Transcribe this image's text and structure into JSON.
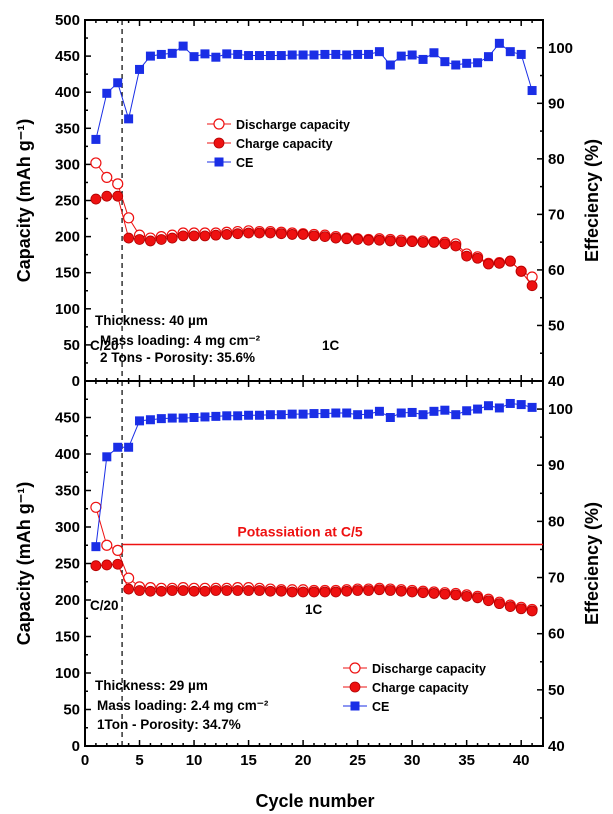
{
  "chart_data": [
    {
      "type": "scatter",
      "title": "",
      "xlabel": "Cycle number",
      "ylabel": "Capacity (mAh g⁻¹)",
      "ylabel_right": "Effeciency (%)",
      "xlim": [
        0,
        42
      ],
      "ylim": [
        0,
        500
      ],
      "ylim_right": [
        40,
        105
      ],
      "x_ticks": [
        "0",
        "5",
        "10",
        "15",
        "20",
        "25",
        "30",
        "35",
        "40"
      ],
      "y_ticks": [
        "0",
        "50",
        "100",
        "150",
        "200",
        "250",
        "300",
        "350",
        "400",
        "450",
        "500"
      ],
      "y_ticks_right": [
        "40",
        "50",
        "60",
        "70",
        "80",
        "90",
        "100"
      ],
      "legend_position": "top-center",
      "rate_divider_x": 3.4,
      "annotations": {
        "rate_left": "C/20",
        "rate_right": "1C",
        "thickness": "Thickness: 40 µm",
        "mass_loading": "Mass loading: 4 mg cm⁻²",
        "porosity": "2 Tons - Porosity: 35.6%"
      },
      "colors": {
        "red": "#ee1111",
        "blue": "#1a2ee6"
      },
      "series": [
        {
          "name": "Discharge capacity",
          "axis": "left",
          "marker": "open-circle",
          "x": [
            1,
            2,
            3,
            4,
            5,
            6,
            7,
            8,
            9,
            10,
            11,
            12,
            13,
            14,
            15,
            16,
            17,
            18,
            19,
            20,
            21,
            22,
            23,
            24,
            25,
            26,
            27,
            28,
            29,
            30,
            31,
            32,
            33,
            34,
            35,
            36,
            37,
            38,
            39,
            40,
            41
          ],
          "values": [
            302,
            282,
            273,
            226,
            202,
            198,
            200,
            202,
            205,
            205,
            205,
            205,
            206,
            207,
            208,
            207,
            207,
            206,
            205,
            204,
            203,
            202,
            200,
            198,
            197,
            196,
            197,
            196,
            195,
            194,
            194,
            193,
            192,
            190,
            176,
            172,
            163,
            164,
            166,
            152,
            144
          ]
        },
        {
          "name": "Charge capacity",
          "axis": "left",
          "marker": "filled-circle",
          "x": [
            1,
            2,
            3,
            4,
            5,
            6,
            7,
            8,
            9,
            10,
            11,
            12,
            13,
            14,
            15,
            16,
            17,
            18,
            19,
            20,
            21,
            22,
            23,
            24,
            25,
            26,
            27,
            28,
            29,
            30,
            31,
            32,
            33,
            34,
            35,
            36,
            37,
            38,
            39,
            40,
            41
          ],
          "values": [
            252,
            256,
            256,
            198,
            196,
            194,
            196,
            198,
            201,
            201,
            201,
            202,
            203,
            204,
            205,
            205,
            205,
            204,
            203,
            203,
            201,
            200,
            198,
            197,
            196,
            195,
            195,
            194,
            193,
            193,
            192,
            192,
            190,
            187,
            173,
            170,
            162,
            163,
            166,
            152,
            132
          ]
        },
        {
          "name": "CE",
          "axis": "right",
          "marker": "filled-square",
          "x": [
            1,
            2,
            3,
            4,
            5,
            6,
            7,
            8,
            9,
            10,
            11,
            12,
            13,
            14,
            15,
            16,
            17,
            18,
            19,
            20,
            21,
            22,
            23,
            24,
            25,
            26,
            27,
            28,
            29,
            30,
            31,
            32,
            33,
            34,
            35,
            36,
            37,
            38,
            39,
            40,
            41
          ],
          "values": [
            83.5,
            91.8,
            93.7,
            87.2,
            96.1,
            98.5,
            98.8,
            99.0,
            100.3,
            98.4,
            98.9,
            98.3,
            98.9,
            98.8,
            98.6,
            98.6,
            98.6,
            98.6,
            98.7,
            98.7,
            98.7,
            98.8,
            98.8,
            98.7,
            98.8,
            98.8,
            99.3,
            96.9,
            98.5,
            98.7,
            97.9,
            99.1,
            97.5,
            96.9,
            97.2,
            97.3,
            98.4,
            100.8,
            99.3,
            98.8,
            92.3
          ]
        }
      ]
    },
    {
      "type": "scatter",
      "title": "",
      "xlabel": "Cycle number",
      "ylabel": "Capacity (mAh g⁻¹)",
      "ylabel_right": "Effeciency (%)",
      "xlim": [
        0,
        42
      ],
      "ylim": [
        0,
        500
      ],
      "ylim_right": [
        40,
        105
      ],
      "x_ticks": [
        "0",
        "5",
        "10",
        "15",
        "20",
        "25",
        "30",
        "35",
        "40"
      ],
      "y_ticks": [
        "0",
        "50",
        "100",
        "150",
        "200",
        "250",
        "300",
        "350",
        "400",
        "450"
      ],
      "y_ticks_right": [
        "40",
        "50",
        "60",
        "70",
        "80",
        "90",
        "100"
      ],
      "legend_position": "bottom-right",
      "rate_divider_x": 3.4,
      "potassiation_line_y": 276,
      "annotations": {
        "rate_left": "C/20",
        "rate_right": "1C",
        "potassiation": "Potassiation at C/5",
        "thickness": "Thickness: 29 µm",
        "mass_loading": "Mass loading: 2.4 mg cm⁻²",
        "porosity": "1Ton - Porosity: 34.7%"
      },
      "colors": {
        "red": "#ee1111",
        "blue": "#1a2ee6"
      },
      "series": [
        {
          "name": "Discharge capacity",
          "axis": "left",
          "marker": "open-circle",
          "x": [
            1,
            2,
            3,
            4,
            5,
            6,
            7,
            8,
            9,
            10,
            11,
            12,
            13,
            14,
            15,
            16,
            17,
            18,
            19,
            20,
            21,
            22,
            23,
            24,
            25,
            26,
            27,
            28,
            29,
            30,
            31,
            32,
            33,
            34,
            35,
            36,
            37,
            38,
            39,
            40,
            41
          ],
          "values": [
            327,
            275,
            268,
            230,
            218,
            217,
            216,
            216,
            217,
            216,
            216,
            216,
            216,
            217,
            217,
            216,
            215,
            214,
            214,
            214,
            213,
            213,
            213,
            214,
            215,
            215,
            216,
            215,
            214,
            213,
            212,
            211,
            210,
            209,
            207,
            205,
            201,
            197,
            193,
            190,
            187
          ]
        },
        {
          "name": "Charge capacity",
          "axis": "left",
          "marker": "filled-circle",
          "x": [
            1,
            2,
            3,
            4,
            5,
            6,
            7,
            8,
            9,
            10,
            11,
            12,
            13,
            14,
            15,
            16,
            17,
            18,
            19,
            20,
            21,
            22,
            23,
            24,
            25,
            26,
            27,
            28,
            29,
            30,
            31,
            32,
            33,
            34,
            35,
            36,
            37,
            38,
            39,
            40,
            41
          ],
          "values": [
            247,
            248,
            249,
            215,
            213,
            212,
            212,
            213,
            213,
            212,
            212,
            213,
            213,
            213,
            213,
            213,
            212,
            212,
            211,
            211,
            211,
            211,
            211,
            212,
            213,
            213,
            214,
            213,
            212,
            211,
            210,
            209,
            208,
            207,
            205,
            203,
            199,
            195,
            191,
            188,
            185
          ]
        },
        {
          "name": "CE",
          "axis": "right",
          "marker": "filled-square",
          "x": [
            1,
            2,
            3,
            4,
            5,
            6,
            7,
            8,
            9,
            10,
            11,
            12,
            13,
            14,
            15,
            16,
            17,
            18,
            19,
            20,
            21,
            22,
            23,
            24,
            25,
            26,
            27,
            28,
            29,
            30,
            31,
            32,
            33,
            34,
            35,
            36,
            37,
            38,
            39,
            40,
            41
          ],
          "values": [
            75.5,
            91.5,
            93.2,
            93.2,
            97.9,
            98.1,
            98.3,
            98.4,
            98.4,
            98.5,
            98.6,
            98.7,
            98.8,
            98.8,
            98.9,
            98.9,
            99.0,
            99.0,
            99.1,
            99.1,
            99.2,
            99.2,
            99.3,
            99.3,
            99.0,
            99.1,
            99.6,
            98.5,
            99.3,
            99.4,
            99.0,
            99.6,
            99.8,
            99.0,
            99.7,
            100.0,
            100.6,
            100.2,
            101.0,
            100.8,
            100.3
          ]
        }
      ]
    }
  ]
}
